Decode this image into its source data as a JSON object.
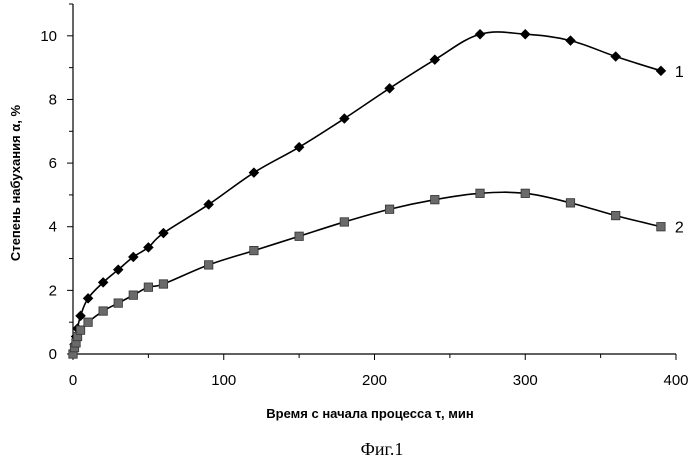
{
  "chart_data": {
    "type": "line",
    "title": "",
    "xlabel": "Время с начала процесса τ, мин",
    "ylabel": "Степень набухания α, %",
    "xlim": [
      0,
      400
    ],
    "ylim": [
      0,
      11
    ],
    "xticks": [
      0,
      100,
      200,
      300,
      400
    ],
    "yticks": [
      0,
      2,
      4,
      6,
      8,
      10
    ],
    "grid": false,
    "series": [
      {
        "name": "1",
        "marker": "diamond",
        "x": [
          0,
          1,
          2,
          3,
          5,
          10,
          20,
          30,
          40,
          50,
          60,
          90,
          120,
          150,
          180,
          210,
          240,
          270,
          300,
          330,
          360,
          390
        ],
        "y": [
          0,
          0.3,
          0.55,
          0.8,
          1.2,
          1.75,
          2.25,
          2.65,
          3.05,
          3.35,
          3.8,
          4.7,
          5.7,
          6.5,
          7.4,
          8.35,
          9.25,
          10.05,
          10.05,
          9.85,
          9.35,
          8.9
        ]
      },
      {
        "name": "2",
        "marker": "square",
        "x": [
          0,
          1,
          2,
          3,
          5,
          10,
          20,
          30,
          40,
          50,
          60,
          90,
          120,
          150,
          180,
          210,
          240,
          270,
          300,
          330,
          360,
          390
        ],
        "y": [
          0,
          0.2,
          0.35,
          0.55,
          0.75,
          1.0,
          1.35,
          1.6,
          1.85,
          2.1,
          2.2,
          2.8,
          3.25,
          3.7,
          4.15,
          4.55,
          4.85,
          5.05,
          5.05,
          4.75,
          4.35,
          4.0
        ]
      }
    ],
    "caption": "Фиг.1"
  }
}
